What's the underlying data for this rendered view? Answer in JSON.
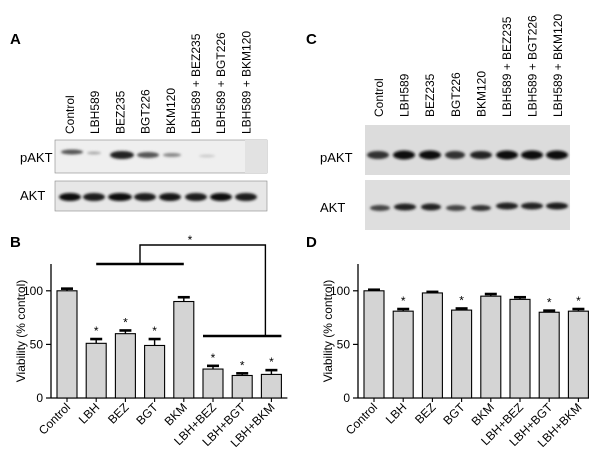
{
  "panels": {
    "A": {
      "letter": "A",
      "lane_labels": [
        "Control",
        "LBH589",
        "BEZ235",
        "BGT226",
        "BKM120",
        "LBH589 + BEZ235",
        "LBH589 + BGT226",
        "LBH589 + BKM120"
      ],
      "row_labels": [
        "pAKT",
        "AKT"
      ]
    },
    "C": {
      "letter": "C",
      "lane_labels": [
        "Control",
        "LBH589",
        "BEZ235",
        "BGT226",
        "BKM120",
        "LBH589 + BEZ235",
        "LBH589 + BGT226",
        "LBH589 + BKM120"
      ],
      "row_labels": [
        "pAKT",
        "AKT"
      ]
    }
  },
  "chart_data": [
    {
      "panel": "B",
      "letter": "B",
      "type": "bar",
      "categories": [
        "Control",
        "LBH",
        "BEZ",
        "BGT",
        "BKM",
        "LBH+BEZ",
        "LBH+BGT",
        "LBH+BKM"
      ],
      "values": [
        100,
        51,
        60,
        49,
        90,
        27,
        21,
        22
      ],
      "errors": [
        2,
        4,
        3,
        6,
        4,
        3,
        2,
        4
      ],
      "significance": [
        "",
        "*",
        "*",
        "*",
        "",
        "*",
        "*",
        "*"
      ],
      "bracket_mark": "*",
      "ylabel": "Viability (% control)",
      "xlabel": "",
      "ylim": [
        0,
        125
      ],
      "yticks": [
        0,
        50,
        100
      ],
      "grid": false,
      "color": "#d4d4d4"
    },
    {
      "panel": "D",
      "letter": "D",
      "type": "bar",
      "categories": [
        "Control",
        "LBH",
        "BEZ",
        "BGT",
        "BKM",
        "LBH+BEZ",
        "LBH+BGT",
        "LBH+BKM"
      ],
      "values": [
        100,
        81,
        98,
        82,
        95,
        92,
        80,
        81
      ],
      "errors": [
        1,
        2,
        1,
        1.5,
        2,
        2,
        1.5,
        2
      ],
      "significance": [
        "",
        "*",
        "",
        "*",
        "",
        "",
        "*",
        "*"
      ],
      "ylabel": "Viability (% control)",
      "xlabel": "",
      "ylim": [
        0,
        125
      ],
      "yticks": [
        0,
        50,
        100
      ],
      "grid": false,
      "color": "#d4d4d4"
    }
  ]
}
